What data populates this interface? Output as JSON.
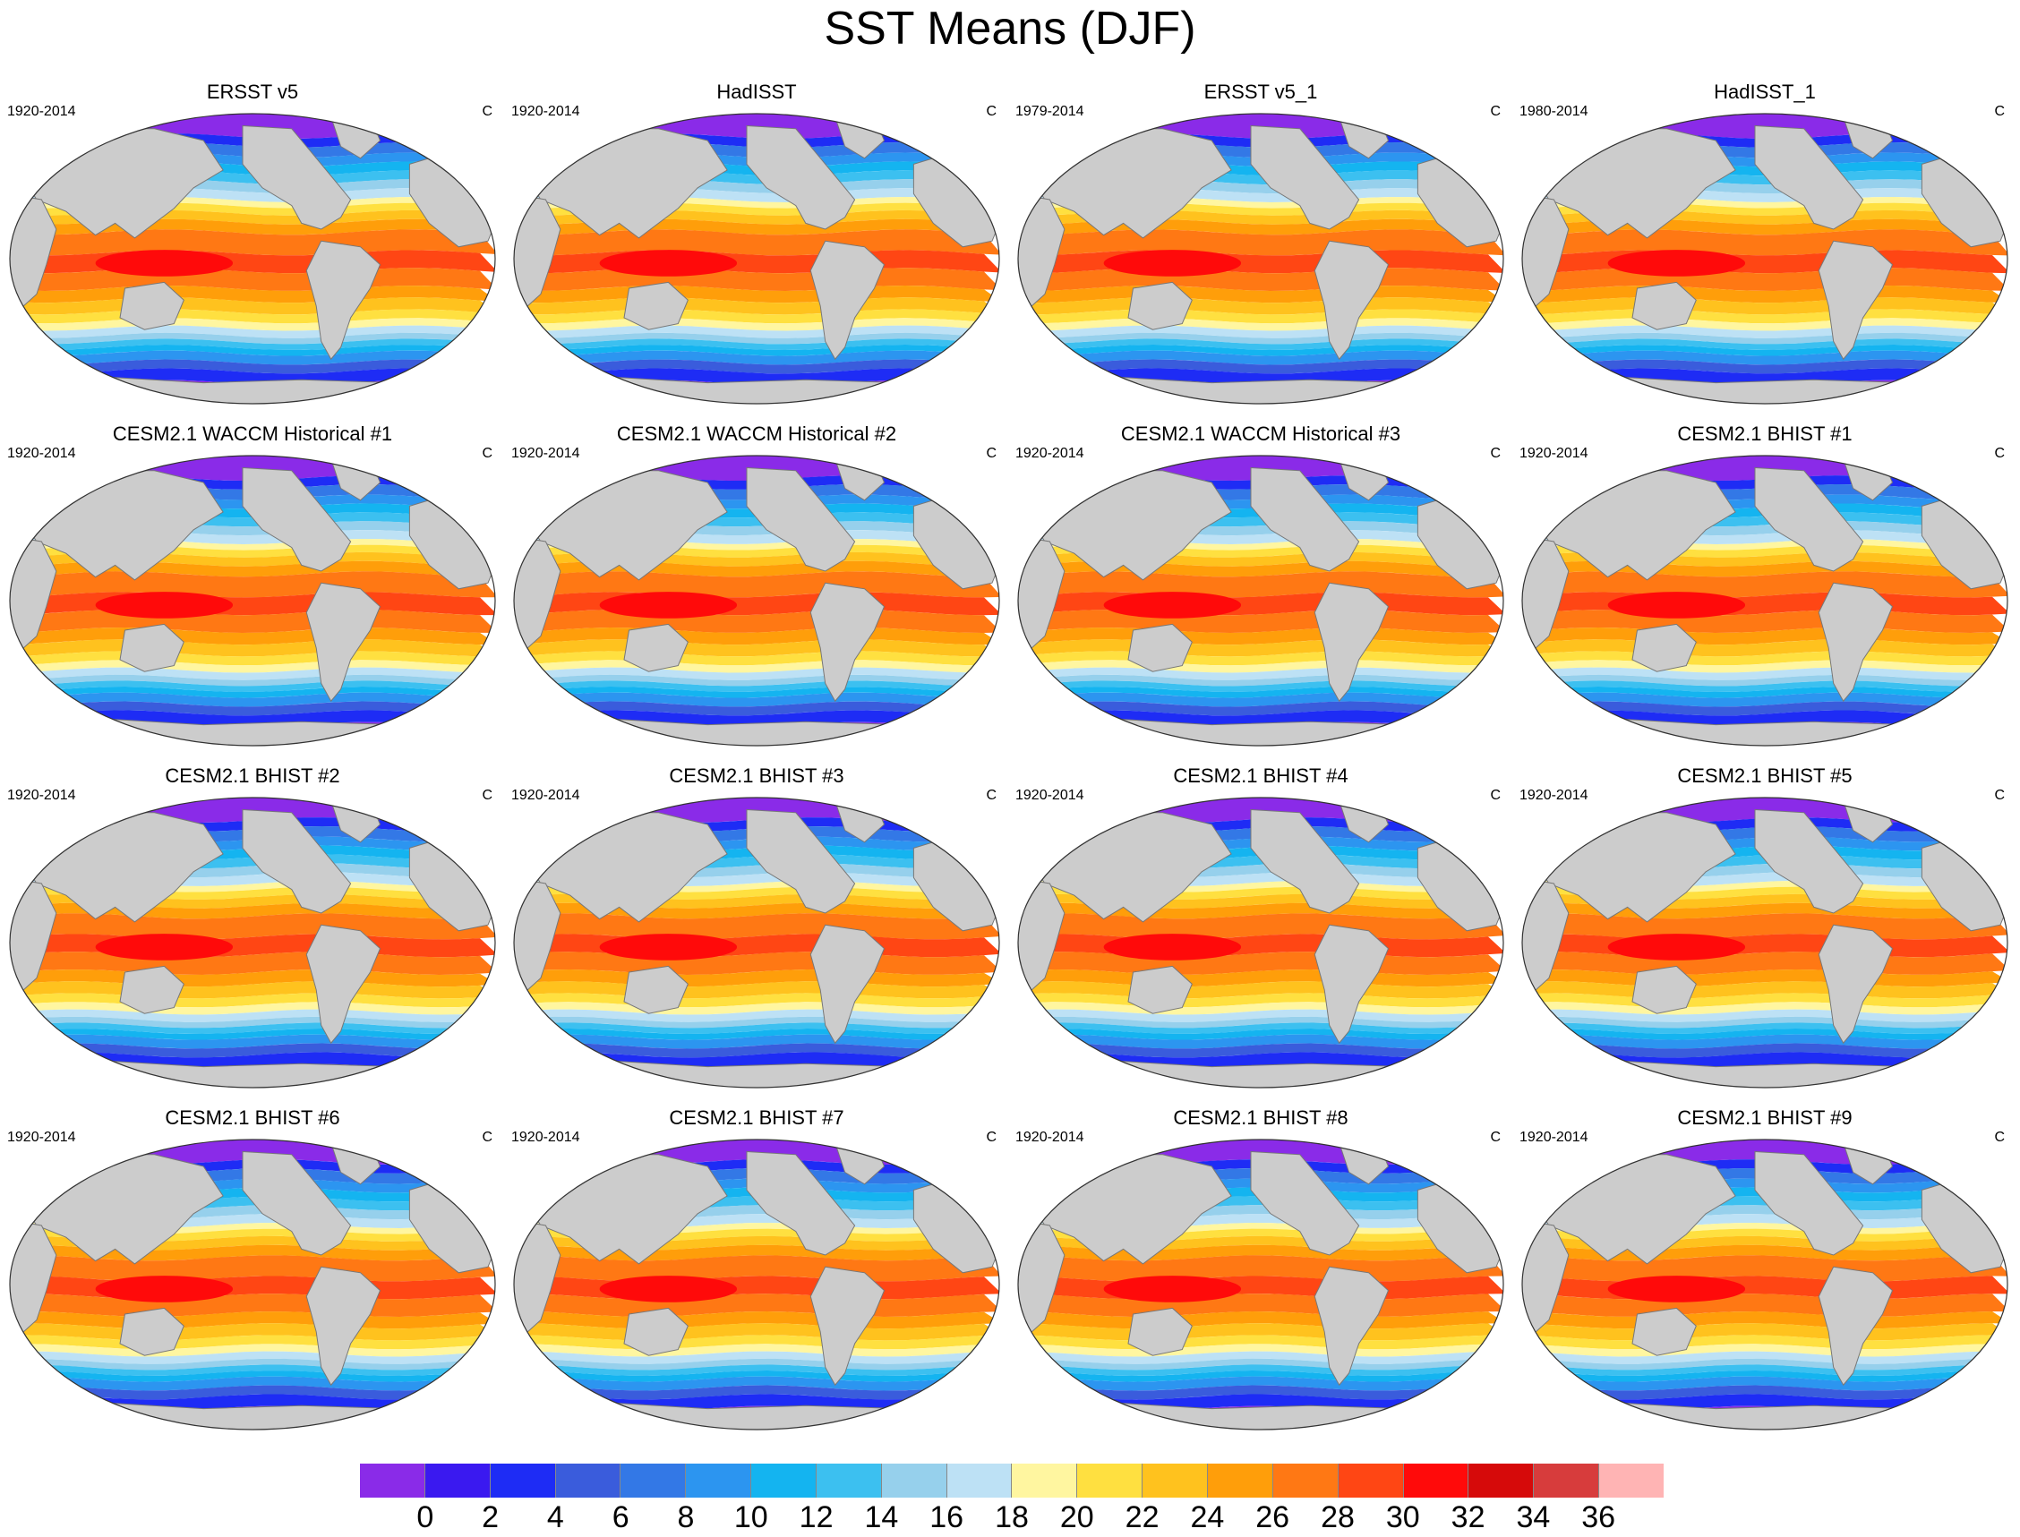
{
  "title": "SST Means (DJF)",
  "panels": [
    {
      "title": "ERSST v5",
      "period": "1920-2014",
      "units": "C"
    },
    {
      "title": "HadISST",
      "period": "1920-2014",
      "units": "C"
    },
    {
      "title": "ERSST v5_1",
      "period": "1979-2014",
      "units": "C"
    },
    {
      "title": "HadISST_1",
      "period": "1980-2014",
      "units": "C"
    },
    {
      "title": "CESM2.1 WACCM Historical #1",
      "period": "1920-2014",
      "units": "C"
    },
    {
      "title": "CESM2.1 WACCM Historical #2",
      "period": "1920-2014",
      "units": "C"
    },
    {
      "title": "CESM2.1 WACCM Historical #3",
      "period": "1920-2014",
      "units": "C"
    },
    {
      "title": "CESM2.1 BHIST #1",
      "period": "1920-2014",
      "units": "C"
    },
    {
      "title": "CESM2.1 BHIST #2",
      "period": "1920-2014",
      "units": "C"
    },
    {
      "title": "CESM2.1 BHIST #3",
      "period": "1920-2014",
      "units": "C"
    },
    {
      "title": "CESM2.1 BHIST #4",
      "period": "1920-2014",
      "units": "C"
    },
    {
      "title": "CESM2.1 BHIST #5",
      "period": "1920-2014",
      "units": "C"
    },
    {
      "title": "CESM2.1 BHIST #6",
      "period": "1920-2014",
      "units": "C"
    },
    {
      "title": "CESM2.1 BHIST #7",
      "period": "1920-2014",
      "units": "C"
    },
    {
      "title": "CESM2.1 BHIST #8",
      "period": "1920-2014",
      "units": "C"
    },
    {
      "title": "CESM2.1 BHIST #9",
      "period": "1920-2014",
      "units": "C"
    }
  ],
  "colorbar": {
    "colors": [
      "#8a2be8",
      "#3a19f0",
      "#1e2cf5",
      "#3a5cdc",
      "#3378e6",
      "#2c95f0",
      "#14b4f0",
      "#3cc0f0",
      "#96d0ec",
      "#bde1f5",
      "#fff6a0",
      "#ffe040",
      "#ffc21e",
      "#ff9e0a",
      "#ff7814",
      "#ff4614",
      "#ff0a0a",
      "#d60a0a",
      "#d73c3c",
      "#ffb4b4"
    ],
    "tick_labels": [
      "0",
      "2",
      "4",
      "6",
      "8",
      "10",
      "12",
      "14",
      "16",
      "18",
      "20",
      "22",
      "24",
      "26",
      "28",
      "30",
      "32",
      "34",
      "36"
    ]
  },
  "colors": {
    "land": "#cccccc",
    "coast": "#777777"
  }
}
